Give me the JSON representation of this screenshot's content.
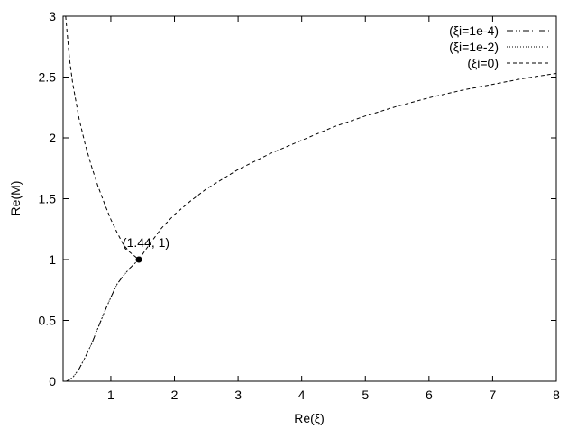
{
  "chart_data": {
    "type": "line",
    "title": "",
    "xlabel": "Re(ξ)",
    "ylabel": "Re(M)",
    "xlim": [
      0.25,
      8
    ],
    "ylim": [
      0,
      3
    ],
    "xticks": [
      1,
      2,
      3,
      4,
      5,
      6,
      7,
      8
    ],
    "xtick_labels": [
      "1",
      "2",
      "3",
      "4",
      "5",
      "6",
      "7",
      "8"
    ],
    "yticks": [
      0,
      0.5,
      1,
      1.5,
      2,
      2.5,
      3
    ],
    "ytick_labels": [
      "0",
      "0.5",
      "1",
      "1.5",
      "2",
      "2.5",
      "3"
    ],
    "grid": false,
    "legend_position": "top-right",
    "series": [
      {
        "name": "(ξi=1e-4)",
        "dash": "dash-dot-dot",
        "color": "#000000",
        "x": [
          0.3,
          0.4,
          0.5,
          0.6,
          0.7,
          0.8,
          0.9,
          1.0,
          1.1,
          1.2,
          1.3,
          1.44
        ],
        "y": [
          0.0,
          0.03,
          0.1,
          0.2,
          0.31,
          0.44,
          0.57,
          0.69,
          0.8,
          0.87,
          0.93,
          1.0
        ]
      },
      {
        "name": "(ξi=1e-2)",
        "dash": "dotted",
        "color": "#000000",
        "x": [
          0.3,
          0.4,
          0.5,
          0.6,
          0.7,
          0.8,
          0.9,
          1.0,
          1.1,
          1.2,
          1.3,
          1.44
        ],
        "y": [
          0.0,
          0.03,
          0.1,
          0.2,
          0.31,
          0.44,
          0.57,
          0.69,
          0.8,
          0.87,
          0.93,
          1.0
        ]
      },
      {
        "name": "(ξi=0)",
        "dash": "dashed",
        "color": "#000000",
        "x": [
          0.29,
          0.35,
          0.4,
          0.5,
          0.6,
          0.7,
          0.8,
          0.9,
          1.0,
          1.1,
          1.2,
          1.3,
          1.44,
          1.6,
          1.8,
          2.0,
          2.25,
          2.5,
          2.75,
          3.0,
          3.5,
          4.0,
          4.5,
          5.0,
          5.5,
          6.0,
          6.5,
          7.0,
          7.5,
          8.0
        ],
        "y": [
          3.0,
          2.65,
          2.45,
          2.16,
          1.94,
          1.76,
          1.6,
          1.46,
          1.33,
          1.22,
          1.12,
          1.06,
          1.0,
          1.12,
          1.26,
          1.37,
          1.48,
          1.58,
          1.66,
          1.74,
          1.87,
          1.98,
          2.09,
          2.18,
          2.26,
          2.33,
          2.39,
          2.44,
          2.49,
          2.53
        ]
      }
    ],
    "annotations": [
      {
        "text": "(1.44, 1)",
        "x": 1.44,
        "y": 1.0
      }
    ]
  }
}
